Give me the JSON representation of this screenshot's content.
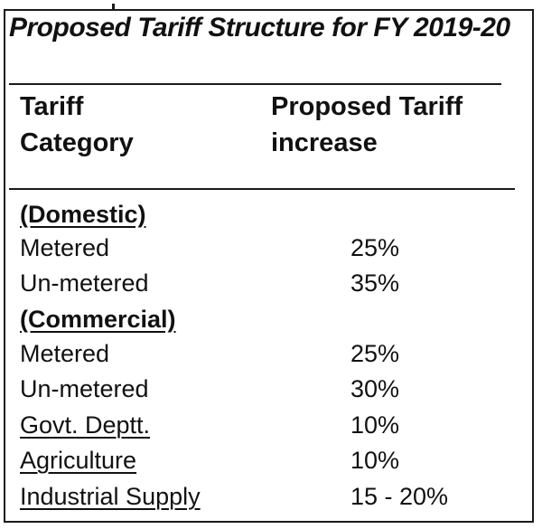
{
  "title": "Proposed Tariff Structure for FY 2019-20",
  "headers": {
    "category_line1": "Tariff",
    "category_line2": "Category",
    "increase_line1": "Proposed Tariff",
    "increase_line2": "increase"
  },
  "rows": [
    {
      "category": "(Domestic)",
      "value": ""
    },
    {
      "category": "Metered",
      "value": "25%"
    },
    {
      "category": "Un-metered",
      "value": "35%"
    },
    {
      "category": "(Commercial)",
      "value": ""
    },
    {
      "category": "Metered",
      "value": "25%"
    },
    {
      "category": "Un-metered",
      "value": "30%"
    },
    {
      "category": "Govt. Deptt.",
      "value": "10%"
    },
    {
      "category": "Agriculture",
      "value": "10%"
    },
    {
      "category": "Industrial Supply",
      "value": "15 - 20%"
    }
  ]
}
